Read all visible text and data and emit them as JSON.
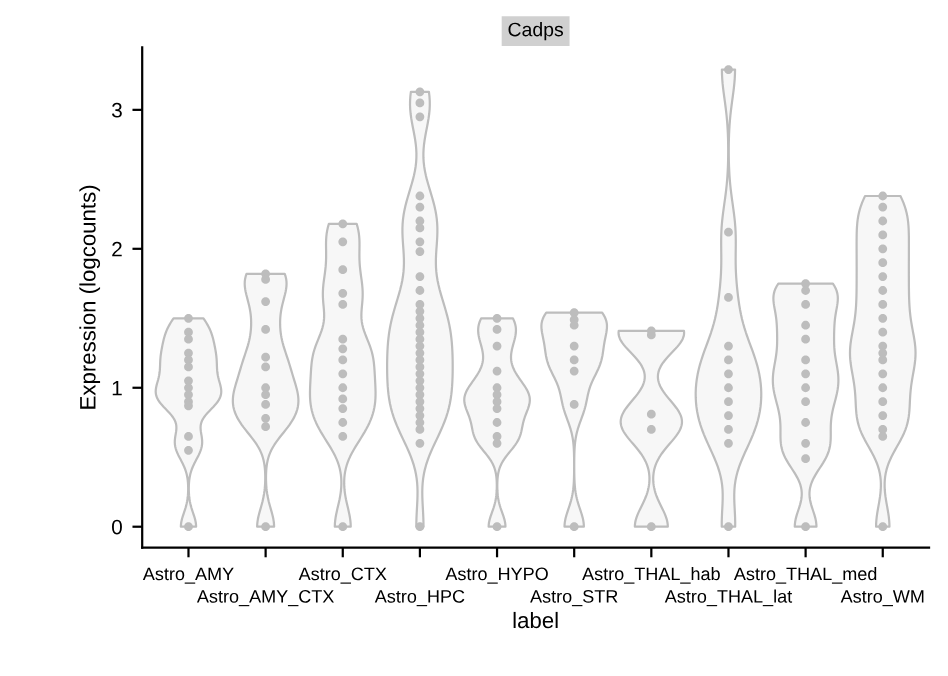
{
  "chart_data": {
    "type": "scatter",
    "title": "Cadps",
    "xlabel": "label",
    "ylabel": "Expression (logcounts)",
    "categories": [
      "Astro_AMY",
      "Astro_AMY_CTX",
      "Astro_CTX",
      "Astro_HPC",
      "Astro_HYPO",
      "Astro_STR",
      "Astro_THAL_hab",
      "Astro_THAL_lat",
      "Astro_THAL_med",
      "Astro_WM"
    ],
    "ylim": [
      -0.15,
      3.45
    ],
    "yticks": [
      0,
      1,
      2,
      3
    ],
    "grid": false,
    "legend": false,
    "marker": "circle",
    "series": [
      {
        "color": "#bdbdbd",
        "x": [
          "Astro_AMY",
          "Astro_AMY",
          "Astro_AMY",
          "Astro_AMY",
          "Astro_AMY",
          "Astro_AMY",
          "Astro_AMY",
          "Astro_AMY",
          "Astro_AMY",
          "Astro_AMY",
          "Astro_AMY",
          "Astro_AMY",
          "Astro_AMY",
          "Astro_AMY"
        ],
        "values": [
          1.5,
          1.4,
          1.35,
          1.25,
          1.2,
          1.15,
          1.05,
          1.0,
          0.95,
          0.9,
          0.87,
          0.65,
          0.55,
          0
        ]
      },
      {
        "color": "#bdbdbd",
        "x": [
          "Astro_AMY_CTX",
          "Astro_AMY_CTX",
          "Astro_AMY_CTX",
          "Astro_AMY_CTX",
          "Astro_AMY_CTX",
          "Astro_AMY_CTX",
          "Astro_AMY_CTX",
          "Astro_AMY_CTX",
          "Astro_AMY_CTX",
          "Astro_AMY_CTX",
          "Astro_AMY_CTX",
          "Astro_AMY_CTX"
        ],
        "values": [
          1.82,
          1.78,
          1.62,
          1.42,
          1.22,
          1.15,
          1.0,
          0.95,
          0.88,
          0.78,
          0.72,
          0
        ]
      },
      {
        "color": "#bdbdbd",
        "x": [
          "Astro_CTX",
          "Astro_CTX",
          "Astro_CTX",
          "Astro_CTX",
          "Astro_CTX",
          "Astro_CTX",
          "Astro_CTX",
          "Astro_CTX",
          "Astro_CTX",
          "Astro_CTX",
          "Astro_CTX",
          "Astro_CTX",
          "Astro_CTX",
          "Astro_CTX",
          "Astro_CTX"
        ],
        "values": [
          2.18,
          2.05,
          1.85,
          1.68,
          1.6,
          1.35,
          1.28,
          1.2,
          1.1,
          1.0,
          0.92,
          0.85,
          0.75,
          0.65,
          0
        ]
      },
      {
        "color": "#bdbdbd",
        "x": [
          "Astro_HPC",
          "Astro_HPC",
          "Astro_HPC",
          "Astro_HPC",
          "Astro_HPC",
          "Astro_HPC",
          "Astro_HPC",
          "Astro_HPC",
          "Astro_HPC",
          "Astro_HPC",
          "Astro_HPC",
          "Astro_HPC",
          "Astro_HPC",
          "Astro_HPC",
          "Astro_HPC",
          "Astro_HPC",
          "Astro_HPC",
          "Astro_HPC",
          "Astro_HPC",
          "Astro_HPC",
          "Astro_HPC",
          "Astro_HPC",
          "Astro_HPC",
          "Astro_HPC",
          "Astro_HPC",
          "Astro_HPC",
          "Astro_HPC",
          "Astro_HPC",
          "Astro_HPC",
          "Astro_HPC",
          "Astro_HPC",
          "Astro_HPC"
        ],
        "values": [
          3.13,
          3.05,
          2.95,
          2.38,
          2.3,
          2.2,
          2.15,
          2.05,
          1.98,
          1.8,
          1.7,
          1.6,
          1.55,
          1.5,
          1.45,
          1.4,
          1.35,
          1.3,
          1.25,
          1.2,
          1.15,
          1.1,
          1.05,
          1.0,
          0.95,
          0.9,
          0.85,
          0.8,
          0.75,
          0.7,
          0.6,
          0
        ]
      },
      {
        "color": "#bdbdbd",
        "x": [
          "Astro_HYPO",
          "Astro_HYPO",
          "Astro_HYPO",
          "Astro_HYPO",
          "Astro_HYPO",
          "Astro_HYPO",
          "Astro_HYPO",
          "Astro_HYPO",
          "Astro_HYPO",
          "Astro_HYPO",
          "Astro_HYPO",
          "Astro_HYPO"
        ],
        "values": [
          1.5,
          1.42,
          1.3,
          1.12,
          1.0,
          0.95,
          0.9,
          0.85,
          0.75,
          0.65,
          0.6,
          0
        ]
      },
      {
        "color": "#bdbdbd",
        "x": [
          "Astro_STR",
          "Astro_STR",
          "Astro_STR",
          "Astro_STR",
          "Astro_STR",
          "Astro_STR",
          "Astro_STR",
          "Astro_STR"
        ],
        "values": [
          1.54,
          1.49,
          1.45,
          1.3,
          1.2,
          1.12,
          0.88,
          0
        ]
      },
      {
        "color": "#bdbdbd",
        "x": [
          "Astro_THAL_hab",
          "Astro_THAL_hab",
          "Astro_THAL_hab",
          "Astro_THAL_hab",
          "Astro_THAL_hab"
        ],
        "values": [
          1.41,
          1.38,
          0.81,
          0.7,
          0
        ]
      },
      {
        "color": "#bdbdbd",
        "x": [
          "Astro_THAL_lat",
          "Astro_THAL_lat",
          "Astro_THAL_lat",
          "Astro_THAL_lat",
          "Astro_THAL_lat",
          "Astro_THAL_lat",
          "Astro_THAL_lat",
          "Astro_THAL_lat",
          "Astro_THAL_lat",
          "Astro_THAL_lat",
          "Astro_THAL_lat",
          "Astro_THAL_lat"
        ],
        "values": [
          3.29,
          2.12,
          1.65,
          1.3,
          1.2,
          1.1,
          1.0,
          0.9,
          0.8,
          0.7,
          0.6,
          0
        ]
      },
      {
        "color": "#bdbdbd",
        "x": [
          "Astro_THAL_med",
          "Astro_THAL_med",
          "Astro_THAL_med",
          "Astro_THAL_med",
          "Astro_THAL_med",
          "Astro_THAL_med",
          "Astro_THAL_med",
          "Astro_THAL_med",
          "Astro_THAL_med",
          "Astro_THAL_med",
          "Astro_THAL_med",
          "Astro_THAL_med",
          "Astro_THAL_med"
        ],
        "values": [
          1.75,
          1.7,
          1.6,
          1.45,
          1.35,
          1.2,
          1.1,
          1.0,
          0.9,
          0.75,
          0.6,
          0.49,
          0
        ]
      },
      {
        "color": "#bdbdbd",
        "x": [
          "Astro_WM",
          "Astro_WM",
          "Astro_WM",
          "Astro_WM",
          "Astro_WM",
          "Astro_WM",
          "Astro_WM",
          "Astro_WM",
          "Astro_WM",
          "Astro_WM",
          "Astro_WM",
          "Astro_WM",
          "Astro_WM",
          "Astro_WM",
          "Astro_WM",
          "Astro_WM",
          "Astro_WM",
          "Astro_WM",
          "Astro_WM",
          "Astro_WM",
          "Astro_WM"
        ],
        "values": [
          2.38,
          2.3,
          2.2,
          2.1,
          2.0,
          1.9,
          1.8,
          1.7,
          1.6,
          1.5,
          1.4,
          1.3,
          1.25,
          1.2,
          1.1,
          1.0,
          0.9,
          0.8,
          0.7,
          0.65,
          0
        ]
      }
    ]
  }
}
